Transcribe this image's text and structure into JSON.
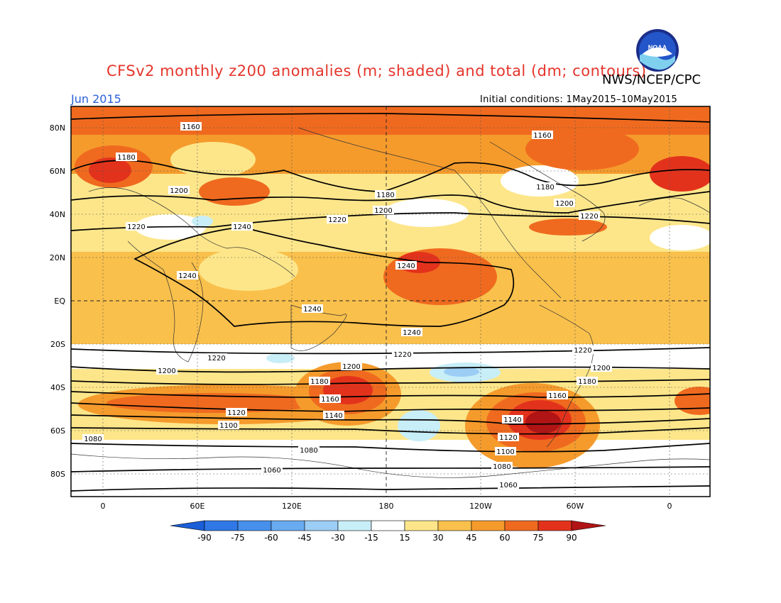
{
  "header": {
    "title": "CFSv2 monthly z200 anomalies (m; shaded) and total (dm; contours)",
    "agency": "NWS/NCEP/CPC",
    "month": "Jun 2015",
    "initial_conditions": "Initial conditions: 1May2015–10May2015",
    "logo_icon": "noaa-logo-icon",
    "logo_text": "NOAA"
  },
  "map": {
    "lat_labels": [
      "80N",
      "60N",
      "40N",
      "20N",
      "EQ",
      "20S",
      "40S",
      "60S",
      "80S"
    ],
    "lon_labels": [
      "0",
      "60E",
      "120E",
      "180",
      "120W",
      "60W",
      "0"
    ],
    "contour_labels": [
      "1060",
      "1080",
      "1100",
      "1120",
      "1140",
      "1160",
      "1180",
      "1200",
      "1220",
      "1240"
    ]
  },
  "colorbar": {
    "levels": [
      "-90",
      "-75",
      "-60",
      "-45",
      "-30",
      "-15",
      "15",
      "30",
      "45",
      "60",
      "75",
      "90"
    ],
    "colors": [
      "#1a5ed8",
      "#2f78e6",
      "#4690ec",
      "#69abf0",
      "#9ccdf5",
      "#c8eef8",
      "#ffffff",
      "#fde68a",
      "#f9c04c",
      "#f59b2c",
      "#ef6a1f",
      "#e3321c",
      "#b01414"
    ]
  }
}
